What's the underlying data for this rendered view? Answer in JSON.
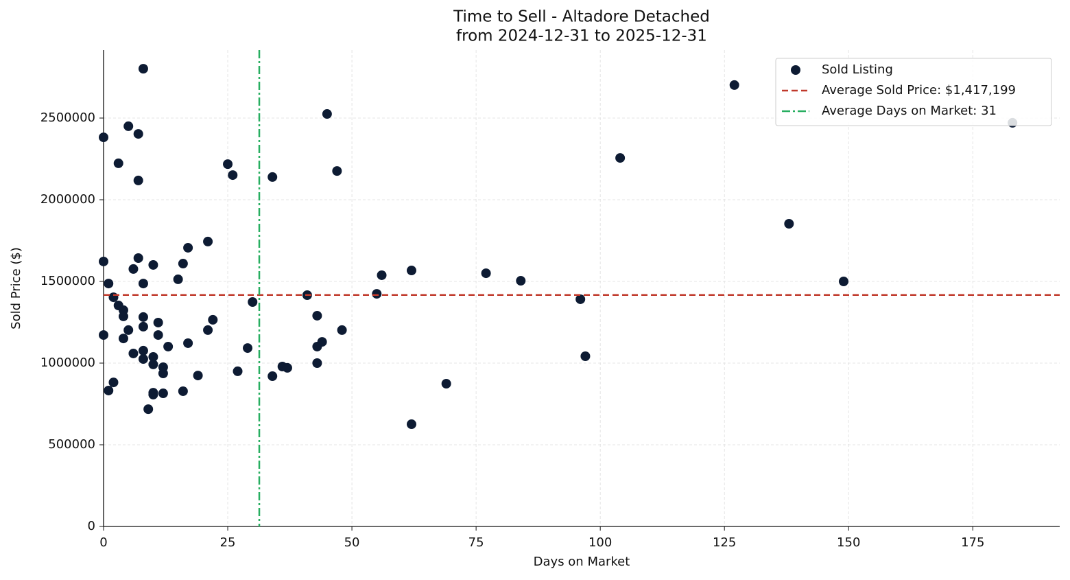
{
  "chart_data": {
    "type": "scatter",
    "title": "Time to Sell - Altadore Detached",
    "subtitle": "from 2024-12-31 to 2025-12-31",
    "x_label": "Days on Market",
    "y_label": "Sold Price ($)",
    "xlim": [
      0,
      192.5
    ],
    "ylim": [
      0,
      2916000
    ],
    "xticks": [
      0,
      25,
      50,
      75,
      100,
      125,
      150,
      175
    ],
    "yticks": [
      0,
      500000,
      1000000,
      1500000,
      2000000,
      2500000
    ],
    "grid": true,
    "legend": "upper right",
    "series": [
      {
        "name": "Sold Listing",
        "color": "#0d1b33",
        "x": [
          0,
          8,
          5,
          7,
          3,
          7,
          0,
          1,
          7,
          6,
          10,
          8,
          2,
          3,
          4,
          4,
          8,
          11,
          8,
          0,
          5,
          4,
          11,
          6,
          8,
          8,
          10,
          10,
          12,
          12,
          13,
          2,
          1,
          10,
          10,
          12,
          9,
          16,
          15,
          16,
          17,
          21,
          17,
          21,
          22,
          19,
          25,
          26,
          27,
          29,
          30,
          34,
          34,
          36,
          37,
          41,
          45,
          47,
          43,
          44,
          43,
          43,
          48,
          55,
          56,
          62,
          62,
          69,
          77,
          84,
          96,
          97,
          104,
          127,
          138,
          149,
          183
        ],
        "values": [
          2382000,
          2802000,
          2450000,
          2403000,
          2223000,
          2118000,
          1622000,
          1487000,
          1643000,
          1576000,
          1601000,
          1487000,
          1403000,
          1353000,
          1324000,
          1286000,
          1282000,
          1248000,
          1223000,
          1172000,
          1202000,
          1151000,
          1172000,
          1059000,
          1076000,
          1025000,
          1038000,
          992000,
          975000,
          937000,
          1101000,
          882000,
          832000,
          819000,
          807000,
          815000,
          718000,
          828000,
          1513000,
          1609000,
          1706000,
          1744000,
          1122000,
          1202000,
          1265000,
          924000,
          2218000,
          2151000,
          950000,
          1092000,
          1374000,
          2139000,
          920000,
          979000,
          971000,
          1416000,
          2525000,
          2176000,
          1290000,
          1130000,
          1101000,
          1000000,
          1202000,
          1424000,
          1538000,
          1567000,
          626000,
          874000,
          1550000,
          1504000,
          1391000,
          1042000,
          2256000,
          2702000,
          1853000,
          1500000,
          2471000
        ]
      }
    ],
    "reference_lines": [
      {
        "name": "Average Sold Price: $1,417,199",
        "axis": "y",
        "value": 1417199,
        "color": "#c0392b",
        "style": "dashed"
      },
      {
        "name": "Average Days on Market: 31",
        "axis": "x",
        "value": 31.35,
        "color": "#27ae60",
        "style": "dashdot"
      }
    ]
  }
}
